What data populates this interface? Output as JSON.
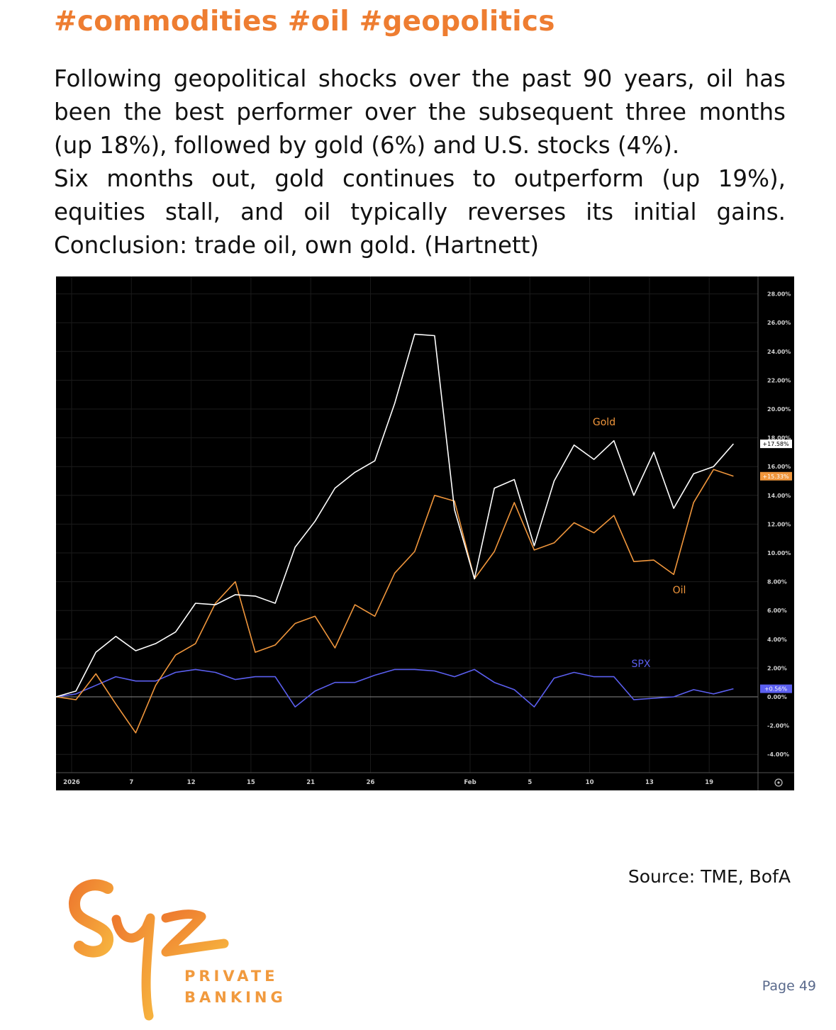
{
  "header": {
    "hashtags": "#commodities #oil #geopolitics"
  },
  "paragraphs": [
    "Following geopolitical shocks over the past 90 years, oil has been the best performer over the subsequent three months (up 18%), followed by gold (6%) and U.S. stocks (4%).",
    "Six months out, gold continues to outperform (up 19%), equities stall, and oil typically reverses its initial gains. Conclusion: trade oil, own gold. (Hartnett)"
  ],
  "chart_data": {
    "type": "line",
    "x_tick_labels": [
      "2026",
      "7",
      "12",
      "15",
      "21",
      "26",
      "Feb",
      "5",
      "10",
      "13",
      "19"
    ],
    "x_tick_index": [
      0,
      3,
      6,
      9,
      12,
      15,
      20,
      23,
      26,
      29,
      32
    ],
    "y_tick_labels": [
      "28.00%",
      "26.00%",
      "24.00%",
      "22.00%",
      "20.00%",
      "18.00%",
      "16.00%",
      "14.00%",
      "12.00%",
      "10.00%",
      "8.00%",
      "6.00%",
      "4.00%",
      "2.00%",
      "0.00%",
      "-2.00%",
      "-4.00%"
    ],
    "ylim": [
      -5,
      28.5
    ],
    "grid": true,
    "series": [
      {
        "name": "Gold",
        "color": "#ffffff",
        "values": [
          0,
          0.4,
          3.1,
          4.2,
          3.2,
          3.7,
          4.5,
          6.5,
          6.4,
          7.1,
          7.0,
          6.5,
          10.4,
          12.2,
          14.5,
          15.6,
          16.4,
          20.4,
          25.2,
          25.1,
          13.0,
          8.2,
          14.5,
          15.1,
          10.5,
          15.0,
          17.5,
          16.5,
          17.8,
          14.0,
          17.0,
          13.1,
          15.5,
          16.0,
          17.58
        ],
        "last_value_label": "+17.58%"
      },
      {
        "name": "Oil",
        "color": "#f0963c",
        "values": [
          0,
          -0.2,
          1.6,
          -0.5,
          -2.5,
          0.8,
          2.9,
          3.7,
          6.5,
          8.0,
          3.1,
          3.6,
          5.1,
          5.6,
          3.4,
          6.4,
          5.6,
          8.6,
          10.1,
          14.0,
          13.6,
          8.2,
          10.1,
          13.5,
          10.2,
          10.7,
          12.1,
          11.4,
          12.6,
          9.4,
          9.5,
          8.5,
          13.5,
          15.8,
          15.33
        ],
        "last_value_label": "+15.33%"
      },
      {
        "name": "SPX",
        "color": "#5b5ff0",
        "values": [
          0,
          0.2,
          0.8,
          1.4,
          1.1,
          1.1,
          1.7,
          1.9,
          1.7,
          1.2,
          1.4,
          1.4,
          -0.7,
          0.4,
          1.0,
          1.0,
          1.5,
          1.9,
          1.9,
          1.8,
          1.4,
          1.9,
          1.0,
          0.5,
          -0.7,
          1.3,
          1.7,
          1.4,
          1.4,
          -0.2,
          -0.1,
          0.0,
          0.5,
          0.2,
          0.56
        ],
        "last_value_label": "+0.56%"
      }
    ]
  },
  "source": "Source: TME, BofA",
  "logo": {
    "line1": "PRIVATE",
    "line2": "BANKING"
  },
  "page": "Page 49"
}
